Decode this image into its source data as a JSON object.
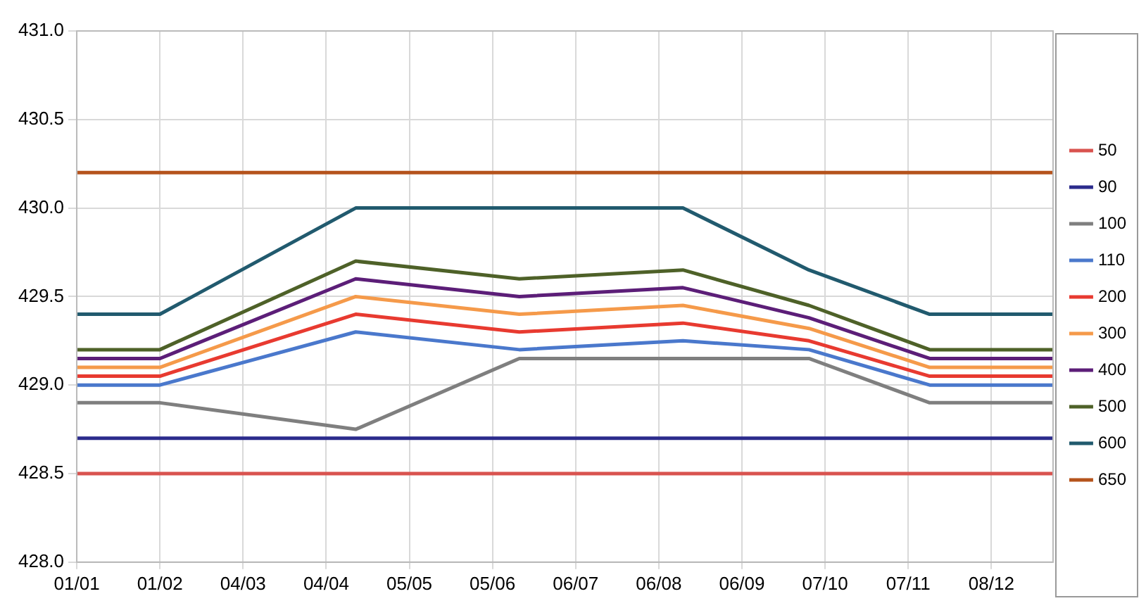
{
  "chart_data": {
    "type": "line",
    "x": [
      "--01-01",
      "--02-01",
      "--04-15",
      "--06-15",
      "--08-15",
      "--10-01",
      "--11-15",
      "--12-31"
    ],
    "series": [
      {
        "name": "50",
        "color": "#d9534f",
        "values": [
          428.5,
          428.5,
          428.5,
          428.5,
          428.5,
          428.5,
          428.5,
          428.5
        ]
      },
      {
        "name": "90",
        "color": "#2b2b8c",
        "values": [
          428.7,
          428.7,
          428.7,
          428.7,
          428.7,
          428.7,
          428.7,
          428.7
        ]
      },
      {
        "name": "100",
        "color": "#7f7f7f",
        "values": [
          428.9,
          428.9,
          428.75,
          429.15,
          429.15,
          429.15,
          428.9,
          428.9
        ]
      },
      {
        "name": "110",
        "color": "#4a78cc",
        "values": [
          429.0,
          429.0,
          429.3,
          429.2,
          429.25,
          429.2,
          429.0,
          429.0
        ]
      },
      {
        "name": "200",
        "color": "#e83a30",
        "values": [
          429.05,
          429.05,
          429.4,
          429.3,
          429.35,
          429.25,
          429.05,
          429.05
        ]
      },
      {
        "name": "300",
        "color": "#f59a4a",
        "values": [
          429.1,
          429.1,
          429.5,
          429.4,
          429.45,
          429.32,
          429.1,
          429.1
        ]
      },
      {
        "name": "400",
        "color": "#5c1e78",
        "values": [
          429.15,
          429.15,
          429.6,
          429.5,
          429.55,
          429.38,
          429.15,
          429.15
        ]
      },
      {
        "name": "500",
        "color": "#4e6128",
        "values": [
          429.2,
          429.2,
          429.7,
          429.6,
          429.65,
          429.45,
          429.2,
          429.2
        ]
      },
      {
        "name": "600",
        "color": "#215a6e",
        "values": [
          429.4,
          429.4,
          430.0,
          430.0,
          430.0,
          429.65,
          429.4,
          429.4
        ]
      },
      {
        "name": "650",
        "color": "#b5531c",
        "values": [
          430.2,
          430.2,
          430.2,
          430.2,
          430.2,
          430.2,
          430.2,
          430.2
        ]
      }
    ],
    "xlim": [
      "--01-01",
      "--12-31"
    ],
    "xticks": [
      {
        "value": "--01-01",
        "label": "01/01"
      },
      {
        "value": "--02-01",
        "label": "01/02"
      },
      {
        "value": "--03-04",
        "label": "04/03"
      },
      {
        "value": "--04-04",
        "label": "04/04"
      },
      {
        "value": "--05-05",
        "label": "05/05"
      },
      {
        "value": "--06-05",
        "label": "05/06"
      },
      {
        "value": "--07-06",
        "label": "06/07"
      },
      {
        "value": "--08-06",
        "label": "06/08"
      },
      {
        "value": "--09-06",
        "label": "06/09"
      },
      {
        "value": "--10-07",
        "label": "07/10"
      },
      {
        "value": "--11-07",
        "label": "07/11"
      },
      {
        "value": "--12-08",
        "label": "08/12"
      }
    ],
    "ylim": [
      428,
      431
    ],
    "yticks": [
      {
        "value": 428,
        "label": "428.0"
      },
      428.5,
      {
        "value": 429,
        "label": "429.0"
      },
      429.5,
      {
        "value": 430,
        "label": "430.0"
      },
      430.5,
      {
        "value": 431,
        "label": "431.0"
      }
    ],
    "grid": true,
    "legend": "right",
    "marker": "none",
    "line_style": "solid"
  }
}
